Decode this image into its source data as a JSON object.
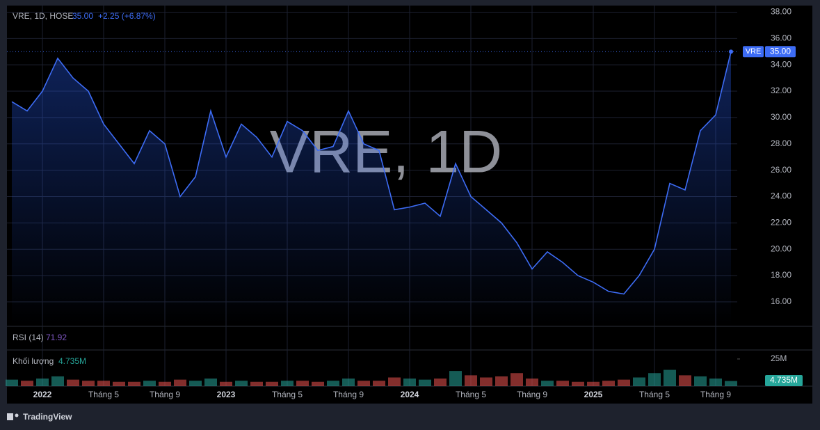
{
  "chart_data": {
    "type": "line",
    "header": {
      "symbol": "VRE, 1D, HOSE",
      "last": "35.00",
      "change": "+2.25 (+6.87%)"
    },
    "watermark": "VRE, 1D",
    "categories": [
      null,
      null,
      "2022",
      null,
      null,
      null,
      "Tháng 5",
      null,
      null,
      null,
      "Tháng 9",
      null,
      null,
      null,
      "2023",
      null,
      null,
      null,
      "Tháng 5",
      null,
      null,
      null,
      "Tháng 9",
      null,
      null,
      null,
      "2024",
      null,
      null,
      null,
      "Tháng 5",
      null,
      null,
      null,
      "Tháng 9",
      null,
      null,
      null,
      "2025",
      null,
      null,
      null,
      "Tháng 5",
      null,
      null,
      null,
      "Tháng 9",
      null
    ],
    "series": [
      {
        "name": "VRE",
        "color": "#3d6cf5",
        "values": [
          31.2,
          30.5,
          32,
          34.5,
          33,
          32,
          29.5,
          28,
          26.5,
          29,
          28,
          24,
          25.5,
          30.5,
          27,
          29.5,
          28.5,
          27,
          29.7,
          29,
          27.5,
          27.8,
          30.5,
          28,
          27.5,
          23,
          23.2,
          23.5,
          22.5,
          26.5,
          24,
          23,
          22,
          20.5,
          18.5,
          19.8,
          19,
          18,
          17.5,
          16.8,
          16.6,
          18,
          20,
          25,
          24.5,
          29,
          30.2,
          35
        ]
      }
    ],
    "ylim": [
      14.2,
      38.5
    ],
    "yticks": [
      {
        "value": 16,
        "label": "16.00"
      },
      {
        "value": 18,
        "label": "18.00"
      },
      {
        "value": 20,
        "label": "20.00"
      },
      {
        "value": 22,
        "label": "22.00"
      },
      {
        "value": 24,
        "label": "24.00"
      },
      {
        "value": 26,
        "label": "26.00"
      },
      {
        "value": 28,
        "label": "28.00"
      },
      {
        "value": 30,
        "label": "30.00"
      },
      {
        "value": 32,
        "label": "32.00"
      },
      {
        "value": 34,
        "label": "34.00"
      },
      {
        "value": 36,
        "label": "36.00"
      },
      {
        "value": 38,
        "label": "38.00"
      }
    ],
    "grid": true,
    "rsi": {
      "name": "RSI (14)",
      "value": "71.92"
    },
    "volume": {
      "name": "Khối lượng",
      "up_color": "#26a69a",
      "down_color": "#ef5350",
      "values": [
        6,
        5,
        7,
        9,
        6,
        5,
        5,
        4,
        4,
        5,
        4,
        6,
        5,
        7,
        4,
        5,
        4,
        4,
        5,
        5,
        4,
        5,
        7,
        5,
        5,
        8,
        7,
        6,
        7,
        14,
        10,
        8,
        9,
        12,
        7,
        5,
        5,
        4,
        4,
        5,
        6,
        8,
        12,
        15,
        10,
        9,
        7,
        4.735
      ],
      "value_labels": [
        null,
        null,
        null,
        null,
        null,
        null,
        null,
        null,
        null,
        null,
        null,
        null,
        null,
        null,
        null,
        null,
        null,
        null,
        null,
        null,
        null,
        null,
        null,
        null,
        null,
        null,
        null,
        null,
        null,
        null,
        null,
        null,
        null,
        null,
        null,
        null,
        null,
        null,
        null,
        null,
        null,
        null,
        null,
        null,
        null,
        null,
        null,
        "4.735M"
      ],
      "ylim": [
        0,
        32
      ],
      "yticks": [
        {
          "value": 25,
          "label": "25M"
        }
      ]
    },
    "brand": "TradingView"
  }
}
